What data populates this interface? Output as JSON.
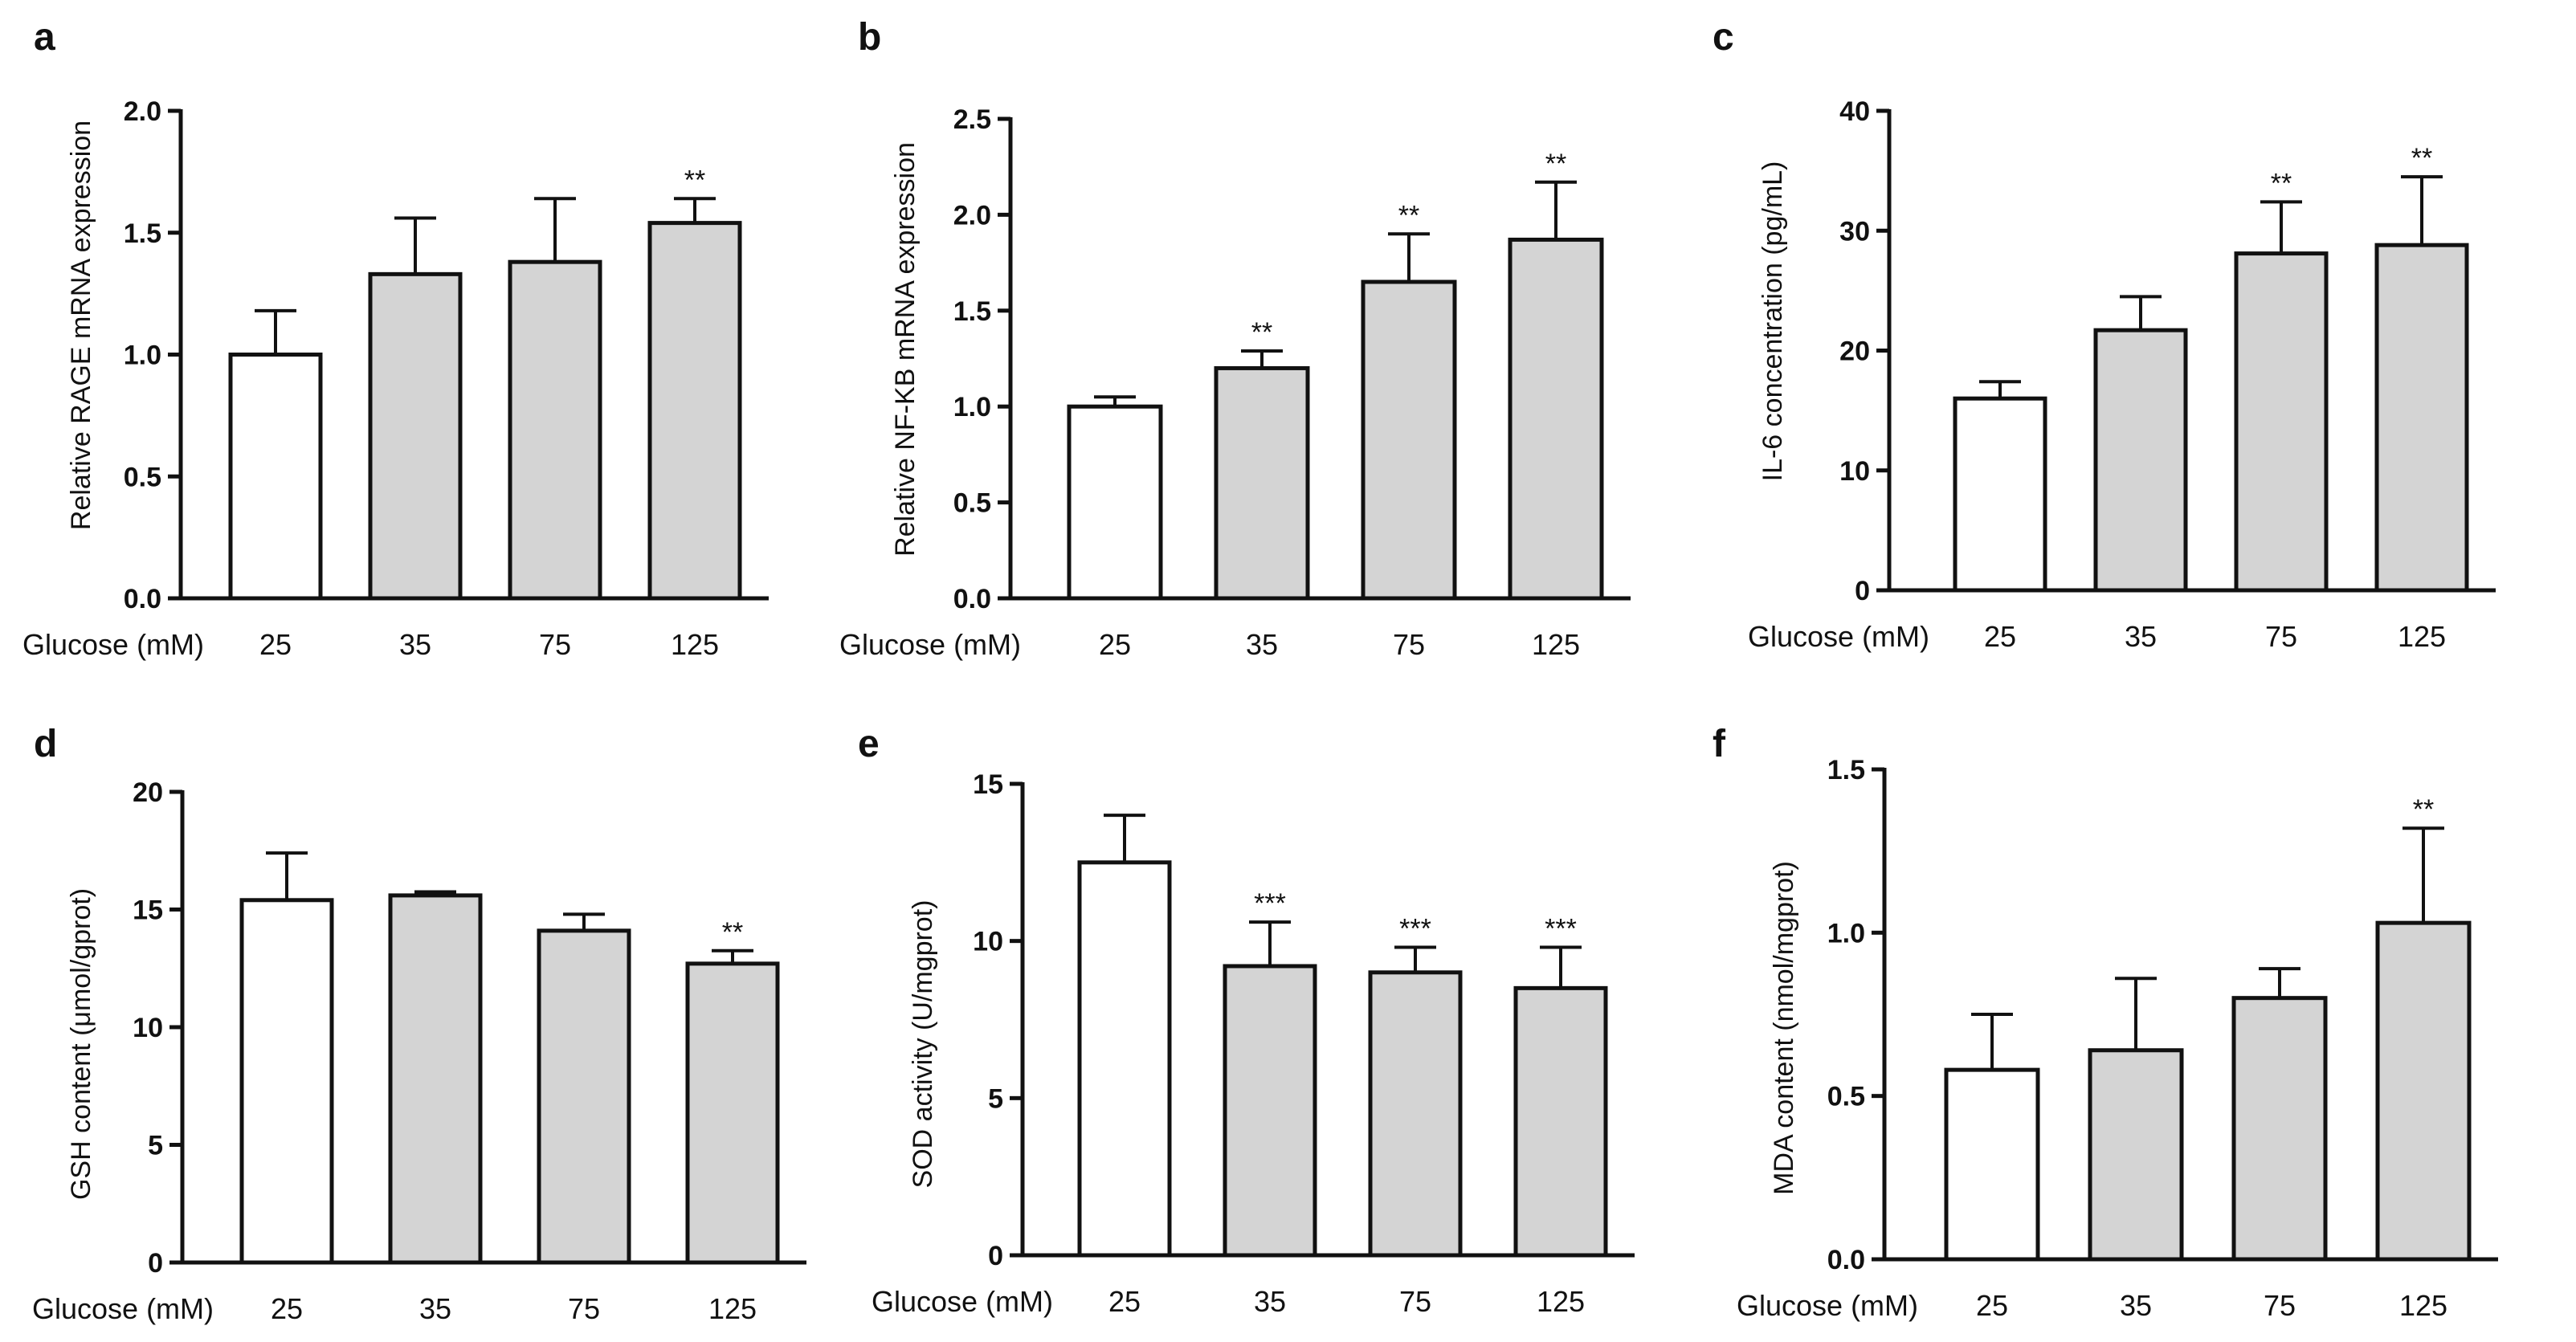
{
  "figure": {
    "background": "#ffffff",
    "control_fill": "#ffffff",
    "treatment_fill": "#d4d4d4",
    "stroke_color": "#111111"
  },
  "chart_data": [
    {
      "panel": "a",
      "type": "bar",
      "xlabel": "Glucose (mM)",
      "ylabel": "Relative RAGE mRNA expression",
      "categories": [
        "25",
        "35",
        "75",
        "125"
      ],
      "values": [
        1.0,
        1.33,
        1.38,
        1.54
      ],
      "errors": [
        0.18,
        0.23,
        0.26,
        0.1
      ],
      "significance": [
        "",
        "",
        "",
        "**"
      ],
      "ylim": [
        0,
        2.0
      ],
      "yticks": [
        0,
        0.5,
        1.0,
        1.5,
        2.0
      ],
      "ytick_labels": [
        "0.0",
        "0.5",
        "1.0",
        "1.5",
        "2.0"
      ]
    },
    {
      "panel": "b",
      "type": "bar",
      "xlabel": "Glucose (mM)",
      "ylabel": "Relative NF-KB  mRNA expression",
      "categories": [
        "25",
        "35",
        "75",
        "125"
      ],
      "values": [
        1.0,
        1.2,
        1.65,
        1.87
      ],
      "errors": [
        0.05,
        0.09,
        0.25,
        0.3
      ],
      "significance": [
        "",
        "**",
        "**",
        "**"
      ],
      "ylim": [
        0,
        2.5
      ],
      "yticks": [
        0,
        0.5,
        1.0,
        1.5,
        2.0,
        2.5
      ],
      "ytick_labels": [
        "0.0",
        "0.5",
        "1.0",
        "1.5",
        "2.0",
        "2.5"
      ]
    },
    {
      "panel": "c",
      "type": "bar",
      "xlabel": "Glucose (mM)",
      "ylabel": "IL-6 concentration (pg/mL)",
      "categories": [
        "25",
        "35",
        "75",
        "125"
      ],
      "values": [
        16.0,
        21.7,
        28.1,
        28.8
      ],
      "errors": [
        1.4,
        2.8,
        4.3,
        5.7
      ],
      "significance": [
        "",
        "",
        "**",
        "**"
      ],
      "ylim": [
        0,
        40
      ],
      "yticks": [
        0,
        10,
        20,
        30,
        40
      ],
      "ytick_labels": [
        "0",
        "10",
        "20",
        "30",
        "40"
      ]
    },
    {
      "panel": "d",
      "type": "bar",
      "xlabel": "Glucose (mM)",
      "ylabel": "GSH content (μmol/gprot)",
      "categories": [
        "25",
        "35",
        "75",
        "125"
      ],
      "values": [
        15.4,
        15.6,
        14.1,
        12.7
      ],
      "errors": [
        2.0,
        0.15,
        0.7,
        0.55
      ],
      "significance": [
        "",
        "",
        "",
        "**"
      ],
      "ylim": [
        0,
        20
      ],
      "yticks": [
        0,
        5,
        10,
        15,
        20
      ],
      "ytick_labels": [
        "0",
        "5",
        "10",
        "15",
        "20"
      ]
    },
    {
      "panel": "e",
      "type": "bar",
      "xlabel": "Glucose (mM)",
      "ylabel": "SOD activity (U/mgprot)",
      "categories": [
        "25",
        "35",
        "75",
        "125"
      ],
      "values": [
        12.5,
        9.2,
        9.0,
        8.5
      ],
      "errors": [
        1.5,
        1.4,
        0.8,
        1.3
      ],
      "significance": [
        "",
        "***",
        "***",
        "***"
      ],
      "ylim": [
        0,
        15
      ],
      "yticks": [
        0,
        5,
        10,
        15
      ],
      "ytick_labels": [
        "0",
        "5",
        "10",
        "15"
      ]
    },
    {
      "panel": "f",
      "type": "bar",
      "xlabel": "Glucose (mM)",
      "ylabel": "MDA content (nmol/mgprot)",
      "categories": [
        "25",
        "35",
        "75",
        "125"
      ],
      "values": [
        0.58,
        0.64,
        0.8,
        1.03
      ],
      "errors": [
        0.17,
        0.22,
        0.09,
        0.29
      ],
      "significance": [
        "",
        "",
        "",
        "**"
      ],
      "ylim": [
        0,
        1.5
      ],
      "yticks": [
        0,
        0.5,
        1.0,
        1.5
      ],
      "ytick_labels": [
        "0.0",
        "0.5",
        "1.0",
        "1.5"
      ]
    }
  ]
}
